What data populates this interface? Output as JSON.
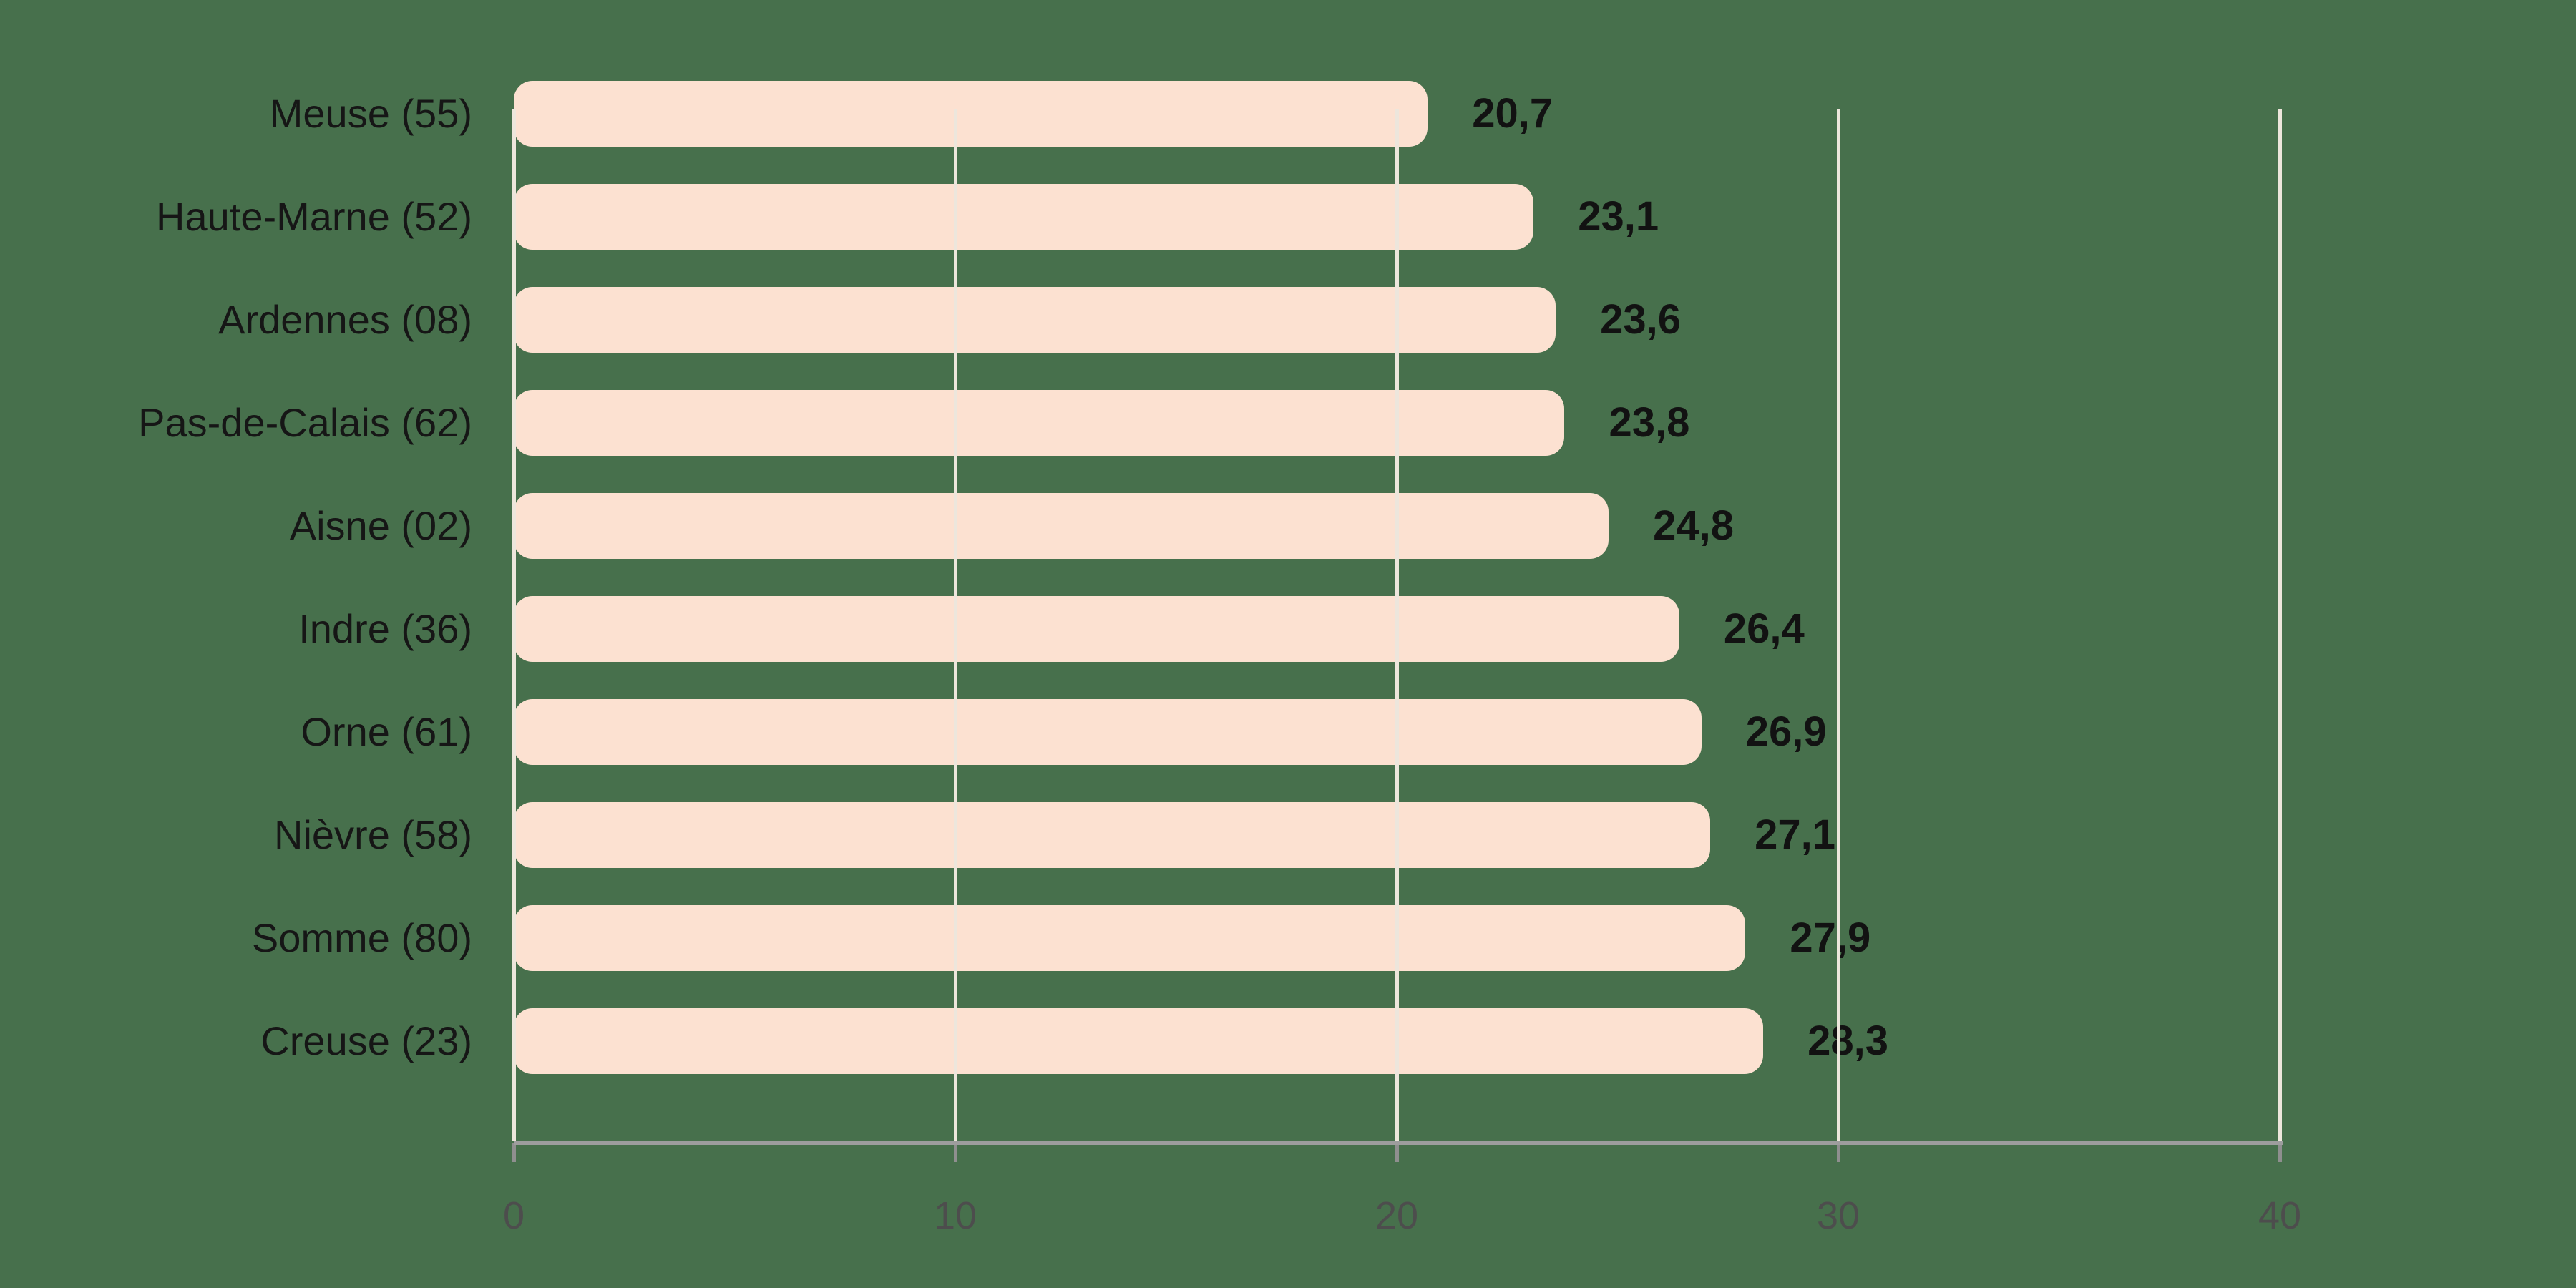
{
  "chart_data": {
    "type": "bar",
    "orientation": "horizontal",
    "title": "",
    "xlabel": "",
    "ylabel": "",
    "categories": [
      "Meuse (55)",
      "Haute-Marne (52)",
      "Ardennes (08)",
      "Pas-de-Calais (62)",
      "Aisne (02)",
      "Indre (36)",
      "Orne (61)",
      "Nièvre (58)",
      "Somme (80)",
      "Creuse (23)"
    ],
    "values": [
      20.7,
      23.1,
      23.6,
      23.8,
      24.8,
      26.4,
      26.9,
      27.1,
      27.9,
      28.3
    ],
    "value_labels": [
      "20,7",
      "23,1",
      "23,6",
      "23,8",
      "24,8",
      "26,4",
      "26,9",
      "27,1",
      "27,9",
      "28,3"
    ],
    "x_ticks": [
      0,
      10,
      20,
      30,
      40
    ],
    "x_tick_labels": [
      "0",
      "10",
      "20",
      "30",
      "40"
    ],
    "xlim": [
      0,
      40
    ],
    "grid": "vertical-gridlines-on",
    "legend": "none",
    "decimal_separator": ",",
    "colors": {
      "background": "#47704C",
      "bar_fill": "#FCE1D1",
      "gridline": "#EDE6DC",
      "axis_line": "#9D9D9D",
      "tick_mark": "#8F8F8F",
      "tick_label_text": "#4D4D4D",
      "category_label_text": "#161616",
      "value_label_text": "#121212"
    }
  }
}
